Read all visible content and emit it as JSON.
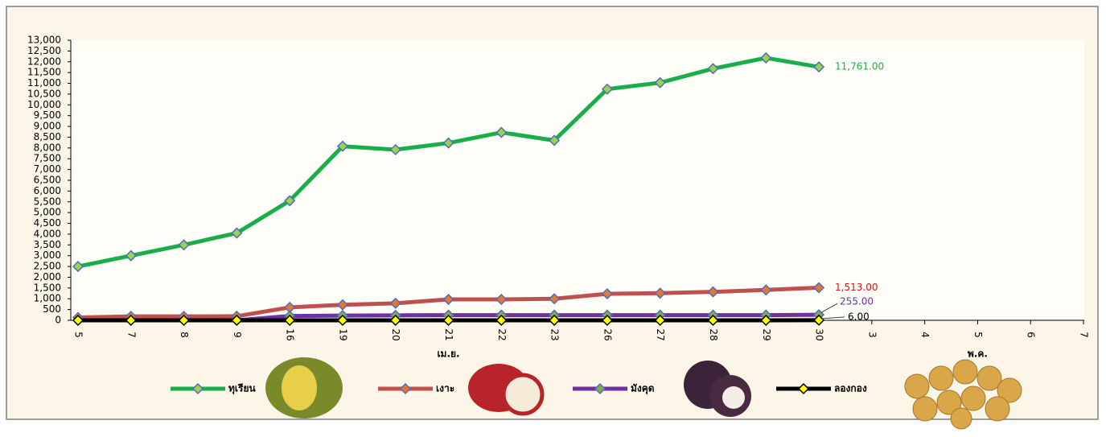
{
  "chart_data": {
    "type": "line",
    "categories": [
      "5",
      "7",
      "8",
      "9",
      "16",
      "19",
      "20",
      "21",
      "22",
      "23",
      "26",
      "27",
      "28",
      "29",
      "30",
      "3",
      "4",
      "5",
      "6",
      "7"
    ],
    "groups": [
      {
        "label": "เม.ย.",
        "from": 0,
        "to": 14
      },
      {
        "label": "พ.ค.",
        "from": 15,
        "to": 19
      }
    ],
    "ylim": [
      0,
      13000
    ],
    "yticks": [
      0,
      500,
      {
        "value": 1000,
        "label": "1,000"
      },
      {
        "value": 1500,
        "label": "1,500"
      },
      {
        "value": 2000,
        "label": "2,000"
      },
      {
        "value": 2500,
        "label": "2,500"
      },
      {
        "value": 3000,
        "label": "3,000"
      },
      {
        "value": 3500,
        "label": "3,500"
      },
      {
        "value": 4000,
        "label": "4,000"
      },
      {
        "value": 4500,
        "label": "4,500"
      },
      {
        "value": 5000,
        "label": "5,000"
      },
      {
        "value": 5500,
        "label": "5,500"
      },
      {
        "value": 6000,
        "label": "6,000"
      },
      {
        "value": 6500,
        "label": "6,500"
      },
      {
        "value": 7000,
        "label": "7,000"
      },
      {
        "value": 7500,
        "label": "7,500"
      },
      {
        "value": 8000,
        "label": "8,000"
      },
      {
        "value": 8500,
        "label": "8,500"
      },
      {
        "value": 9000,
        "label": "9,000"
      },
      {
        "value": 9500,
        "label": "9,500"
      },
      {
        "value": 10000,
        "label": "10,000"
      },
      {
        "value": 10500,
        "label": "10,500"
      },
      {
        "value": 11000,
        "label": "11,000"
      },
      {
        "value": 11500,
        "label": "11,500"
      },
      {
        "value": 12000,
        "label": "12,000"
      },
      {
        "value": 12500,
        "label": "12,500"
      },
      {
        "value": 13000,
        "label": "13,000"
      }
    ],
    "series": [
      {
        "name": "ทุเรียน",
        "color": "#1aae4a",
        "marker_color": "#9ad34a",
        "label_color": "#1aae4a",
        "values": [
          2500,
          3000,
          3500,
          4050,
          5550,
          8080,
          7920,
          8230,
          8720,
          8350,
          10730,
          11030,
          11680,
          12180,
          11761,
          null,
          null,
          null,
          null,
          null
        ],
        "value_labels": [
          null,
          null,
          null,
          null,
          null,
          null,
          null,
          null,
          null,
          null,
          null,
          null,
          null,
          null,
          "11,761.00",
          null,
          null,
          null,
          null,
          null
        ]
      },
      {
        "name": "เงาะ",
        "color": "#c0504d",
        "marker_color": "#e8762b",
        "label_color": "#e01010",
        "values": [
          130,
          180,
          180,
          190,
          600,
          720,
          790,
          970,
          970,
          1000,
          1230,
          1260,
          1320,
          1410,
          1513,
          null,
          null,
          null,
          null,
          null
        ],
        "value_labels": [
          null,
          null,
          null,
          null,
          null,
          null,
          null,
          null,
          null,
          null,
          null,
          null,
          null,
          null,
          "1,513.00",
          null,
          null,
          null,
          null,
          null
        ]
      },
      {
        "name": "มังคุด",
        "color": "#7030a0",
        "marker_color": "#8aa84a",
        "label_color": "#7030a0",
        "values": [
          0,
          0,
          0,
          0,
          200,
          220,
          230,
          240,
          240,
          240,
          240,
          240,
          240,
          240,
          255,
          null,
          null,
          null,
          null,
          null
        ],
        "value_labels": [
          null,
          null,
          null,
          null,
          null,
          null,
          null,
          null,
          null,
          null,
          null,
          null,
          null,
          null,
          "255.00",
          null,
          null,
          null,
          null,
          null
        ]
      },
      {
        "name": "ลองกอง",
        "color": "#000000",
        "marker_color": "#ffff00",
        "label_color": "#000000",
        "values": [
          0,
          0,
          0,
          0,
          0,
          0,
          0,
          0,
          0,
          0,
          0,
          0,
          0,
          0,
          6,
          null,
          null,
          null,
          null,
          null
        ],
        "value_labels": [
          null,
          null,
          null,
          null,
          null,
          null,
          null,
          null,
          null,
          null,
          null,
          null,
          null,
          null,
          "6.00",
          null,
          null,
          null,
          null,
          null
        ]
      }
    ]
  }
}
